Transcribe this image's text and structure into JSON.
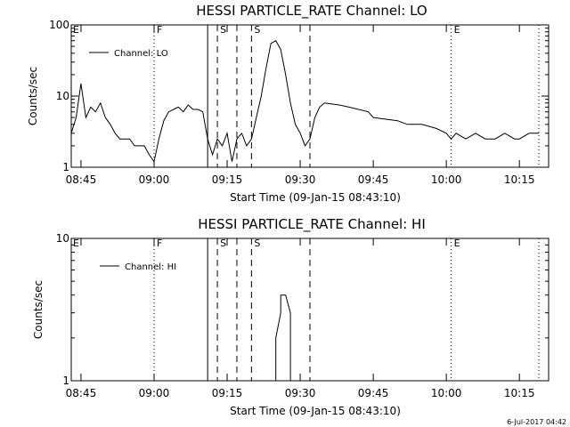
{
  "footer": {
    "timestamp": "6-Jul-2017 04:42"
  },
  "chart_data": [
    {
      "type": "line",
      "title": "HESSI PARTICLE_RATE Channel: LO",
      "xlabel": "Start Time (09-Jan-15 08:43:10)",
      "ylabel": "Counts/sec",
      "y_scale": "log",
      "xlim": [
        "08:43",
        "10:21"
      ],
      "ylim": [
        1,
        100
      ],
      "x_ticks": [
        "08:45",
        "09:00",
        "09:15",
        "09:30",
        "09:45",
        "10:00",
        "10:15"
      ],
      "y_ticks": [
        "1",
        "10",
        "100"
      ],
      "legend": {
        "position": "top-left",
        "entries": [
          "Channel: LO"
        ]
      },
      "event_markers": [
        {
          "time": "09:00",
          "label": "F",
          "style": "dotted"
        },
        {
          "time": "09:11",
          "label": "",
          "style": "solid"
        },
        {
          "time": "09:13",
          "label": "S",
          "style": "dashed"
        },
        {
          "time": "09:17",
          "label": "",
          "style": "dashed"
        },
        {
          "time": "09:20",
          "label": "S",
          "style": "dashed"
        },
        {
          "time": "09:32",
          "label": "",
          "style": "dashed"
        },
        {
          "time": "10:01",
          "label": "E",
          "style": "dotted"
        },
        {
          "time": "10:19",
          "label": "",
          "style": "dotted"
        }
      ],
      "edge_label": "E",
      "series": [
        {
          "name": "Channel: LO",
          "x": [
            "08:43",
            "08:44",
            "08:45",
            "08:46",
            "08:47",
            "08:48",
            "08:49",
            "08:50",
            "08:51",
            "08:52",
            "08:53",
            "08:54",
            "08:55",
            "08:56",
            "08:57",
            "08:58",
            "08:59",
            "09:00",
            "09:01",
            "09:02",
            "09:03",
            "09:04",
            "09:05",
            "09:06",
            "09:07",
            "09:08",
            "09:09",
            "09:10",
            "09:11",
            "09:12",
            "09:13",
            "09:14",
            "09:15",
            "09:16",
            "09:17",
            "09:18",
            "09:19",
            "09:20",
            "09:21",
            "09:22",
            "09:23",
            "09:24",
            "09:25",
            "09:26",
            "09:27",
            "09:28",
            "09:29",
            "09:30",
            "09:31",
            "09:32",
            "09:33",
            "09:34",
            "09:35",
            "09:38",
            "09:40",
            "09:44",
            "09:45",
            "09:50",
            "09:52",
            "09:55",
            "09:58",
            "10:00",
            "10:01",
            "10:02",
            "10:04",
            "10:06",
            "10:08",
            "10:10",
            "10:12",
            "10:14",
            "10:15",
            "10:17",
            "10:18",
            "10:19"
          ],
          "y": [
            3,
            5,
            15,
            5,
            7,
            6,
            8,
            5,
            4,
            3,
            2.5,
            2.5,
            2.5,
            2,
            2,
            2,
            1.5,
            1.2,
            2.5,
            4.5,
            6,
            6.5,
            7,
            6,
            7.5,
            6.5,
            6.5,
            6,
            2.5,
            1.5,
            2.5,
            2,
            3,
            1.2,
            2.5,
            3,
            2,
            2.5,
            5,
            10,
            25,
            55,
            60,
            45,
            20,
            8,
            4,
            3,
            2,
            2.5,
            5,
            7,
            8,
            7.5,
            7,
            6,
            5,
            4.5,
            4,
            4,
            3.5,
            3,
            2.5,
            3,
            2.5,
            3,
            2.5,
            2.5,
            3,
            2.5,
            2.5,
            3,
            3,
            3
          ]
        }
      ]
    },
    {
      "type": "line",
      "title": "HESSI PARTICLE_RATE Channel: HI",
      "xlabel": "Start Time (09-Jan-15 08:43:10)",
      "ylabel": "Counts/sec",
      "y_scale": "log",
      "xlim": [
        "08:43",
        "10:21"
      ],
      "ylim": [
        1,
        10
      ],
      "x_ticks": [
        "08:45",
        "09:00",
        "09:15",
        "09:30",
        "09:45",
        "10:00",
        "10:15"
      ],
      "y_ticks": [
        "1",
        "10"
      ],
      "legend": {
        "position": "top-left",
        "entries": [
          "Channel: HI"
        ]
      },
      "event_markers": [
        {
          "time": "09:00",
          "label": "F",
          "style": "dotted"
        },
        {
          "time": "09:11",
          "label": "",
          "style": "solid"
        },
        {
          "time": "09:13",
          "label": "S",
          "style": "dashed"
        },
        {
          "time": "09:17",
          "label": "",
          "style": "dashed"
        },
        {
          "time": "09:20",
          "label": "S",
          "style": "dashed"
        },
        {
          "time": "09:32",
          "label": "",
          "style": "dashed"
        },
        {
          "time": "10:01",
          "label": "E",
          "style": "dotted"
        },
        {
          "time": "10:19",
          "label": "",
          "style": "dotted"
        }
      ],
      "edge_label": "E",
      "series": [
        {
          "name": "Channel: HI",
          "x": [
            "09:25",
            "09:25",
            "09:26",
            "09:26",
            "09:27",
            "09:28",
            "09:28"
          ],
          "y": [
            1,
            2,
            3,
            4,
            4,
            3,
            1
          ]
        }
      ]
    }
  ]
}
